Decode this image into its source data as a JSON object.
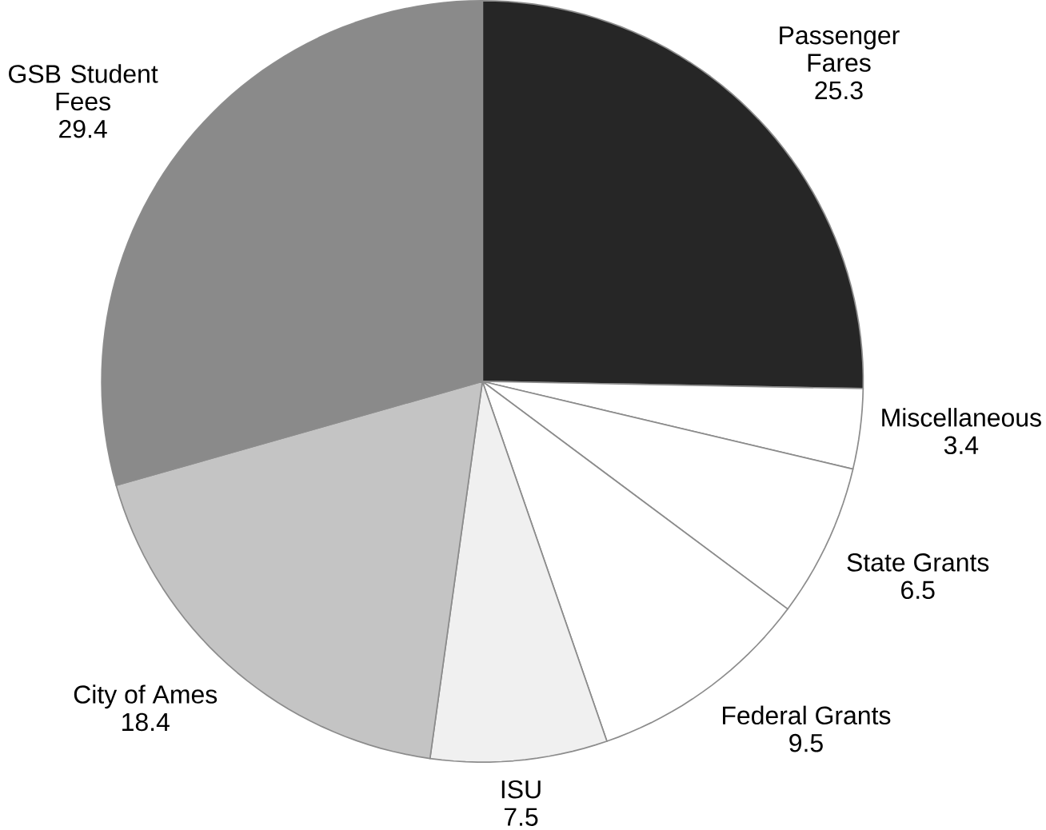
{
  "chart_data": {
    "type": "pie",
    "categories": [
      "Passenger Fares",
      "Miscellaneous",
      "State Grants",
      "Federal Grants",
      "ISU",
      "City of Ames",
      "GSB Student Fees"
    ],
    "values": [
      25.3,
      3.4,
      6.5,
      9.5,
      7.5,
      18.4,
      29.4
    ],
    "colors": [
      "#262626",
      "#ffffff",
      "#ffffff",
      "#ffffff",
      "#f0f0f0",
      "#c4c4c4",
      "#8a8a8a"
    ],
    "data_labels": true
  }
}
